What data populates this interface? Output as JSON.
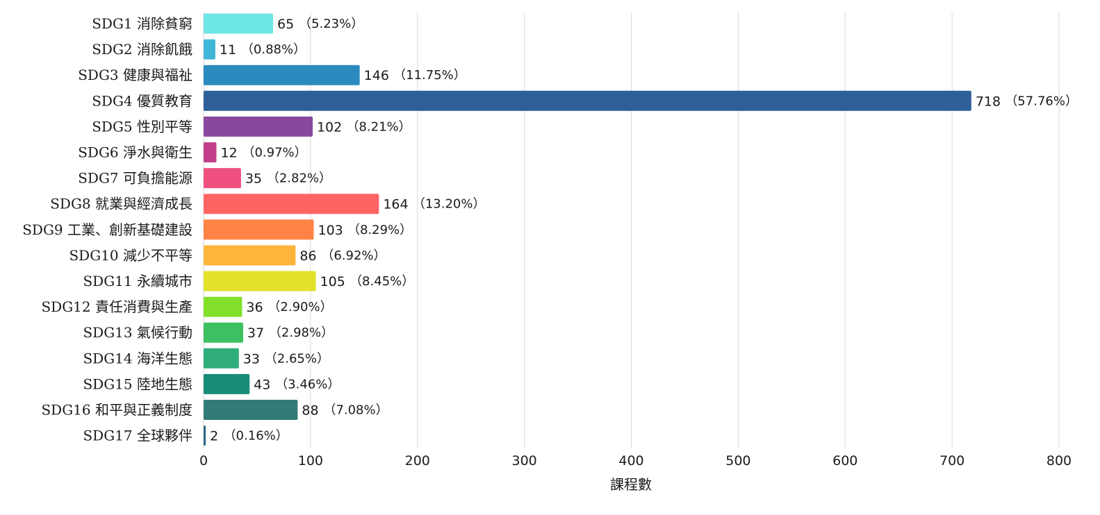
{
  "chart_data": {
    "type": "bar",
    "orientation": "horizontal",
    "title": "",
    "xlabel": "課程數",
    "ylabel": "",
    "xlim": [
      0,
      800
    ],
    "x_ticks": [
      0,
      100,
      200,
      300,
      400,
      500,
      600,
      700,
      800
    ],
    "grid": "vertical",
    "categories": [
      "SDG1 消除貧窮",
      "SDG2 消除飢餓",
      "SDG3 健康與福祉",
      "SDG4 優質教育",
      "SDG5 性別平等",
      "SDG6 淨水與衛生",
      "SDG7 可負擔能源",
      "SDG8 就業與經濟成長",
      "SDG9 工業、創新基礎建設",
      "SDG10 減少不平等",
      "SDG11 永續城市",
      "SDG12 責任消費與生產",
      "SDG13 氣候行動",
      "SDG14 海洋生態",
      "SDG15 陸地生態",
      "SDG16 和平與正義制度",
      "SDG17 全球夥伴"
    ],
    "values": [
      65,
      11,
      146,
      718,
      102,
      12,
      35,
      164,
      103,
      86,
      105,
      36,
      37,
      33,
      43,
      88,
      2
    ],
    "value_labels": [
      "65",
      "11",
      "146",
      "718",
      "102",
      "12",
      "35",
      "164",
      "103",
      "86",
      "105",
      "36",
      "37",
      "33",
      "43",
      "88",
      "2"
    ],
    "percent_labels": [
      "（5.23%）",
      "（0.88%）",
      "（11.75%）",
      "（57.76%）",
      "（8.21%）",
      "（0.97%）",
      "（2.82%）",
      "（13.20%）",
      "（8.29%）",
      "（6.92%）",
      "（8.45%）",
      "（2.90%）",
      "（2.98%）",
      "（2.65%）",
      "（3.46%）",
      "（7.08%）",
      "（0.16%）"
    ],
    "colors": [
      "#6ee6e8",
      "#40b6d8",
      "#2b8bbf",
      "#2e5f99",
      "#88489e",
      "#c2408a",
      "#ef5080",
      "#ff6465",
      "#ff8345",
      "#ffb53c",
      "#e2e22c",
      "#82e02a",
      "#3cc061",
      "#2fae7c",
      "#178c78",
      "#337b78",
      "#2e6a86"
    ]
  }
}
